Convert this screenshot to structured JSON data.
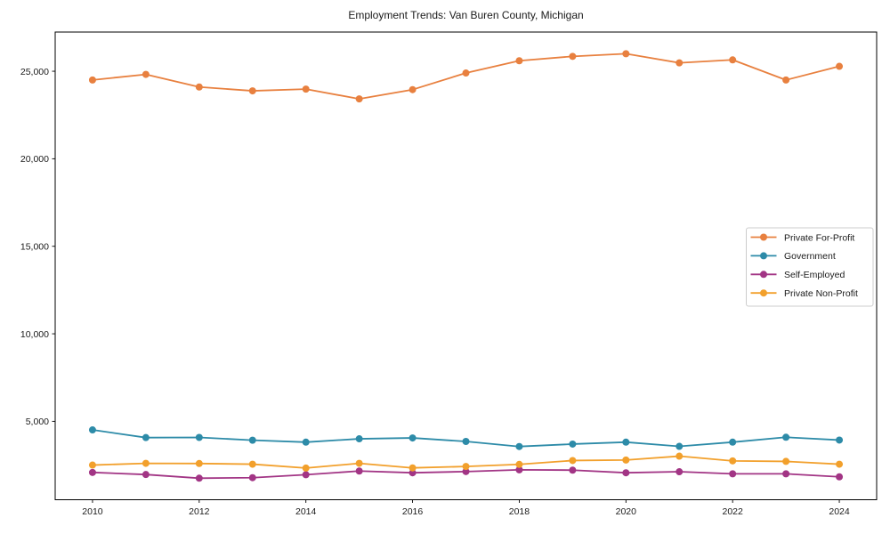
{
  "figure": {
    "title": "Employment Trends: Van Buren County, Michigan"
  },
  "chart_data": {
    "type": "line",
    "title": "Employment Trends: Van Buren County, Michigan",
    "xlabel": "",
    "ylabel": "",
    "x": [
      2010,
      2011,
      2012,
      2013,
      2014,
      2015,
      2016,
      2017,
      2018,
      2019,
      2020,
      2021,
      2022,
      2023,
      2024
    ],
    "series": [
      {
        "name": "Private For-Profit",
        "color": "#E8803F",
        "values": [
          24500,
          24820,
          24100,
          23880,
          23980,
          23420,
          23950,
          24900,
          25600,
          25850,
          26000,
          25480,
          25650,
          24500,
          25280
        ]
      },
      {
        "name": "Government",
        "color": "#2D8BA8",
        "values": [
          4510,
          4070,
          4080,
          3920,
          3810,
          4000,
          4050,
          3850,
          3560,
          3700,
          3810,
          3570,
          3810,
          4090,
          3930
        ]
      },
      {
        "name": "Self-Employed",
        "color": "#A23585",
        "values": [
          2080,
          1960,
          1750,
          1780,
          1950,
          2160,
          2060,
          2130,
          2230,
          2210,
          2060,
          2120,
          2000,
          2000,
          1830
        ]
      },
      {
        "name": "Private Non-Profit",
        "color": "#F2A02C",
        "values": [
          2500,
          2600,
          2590,
          2550,
          2330,
          2600,
          2340,
          2420,
          2540,
          2760,
          2790,
          3010,
          2740,
          2710,
          2550
        ]
      }
    ],
    "xlim": [
      2009.3,
      2024.7
    ],
    "ylim": [
      520,
      27240
    ],
    "x_ticks": [
      2010,
      2012,
      2014,
      2016,
      2018,
      2020,
      2022,
      2024
    ],
    "x_tick_labels": [
      "2010",
      "2012",
      "2014",
      "2016",
      "2018",
      "2020",
      "2022",
      "2024"
    ],
    "y_ticks": [
      5000,
      10000,
      15000,
      20000,
      25000
    ],
    "y_tick_labels": [
      "5,000",
      "10,000",
      "15,000",
      "20,000",
      "25,000"
    ],
    "grid": false,
    "legend_position": "center-right",
    "marker": "circle",
    "axis_color": "#000000",
    "text_color": "#1a1a1a",
    "legend_border_color": "#cccccc",
    "background_color": "#ffffff"
  }
}
